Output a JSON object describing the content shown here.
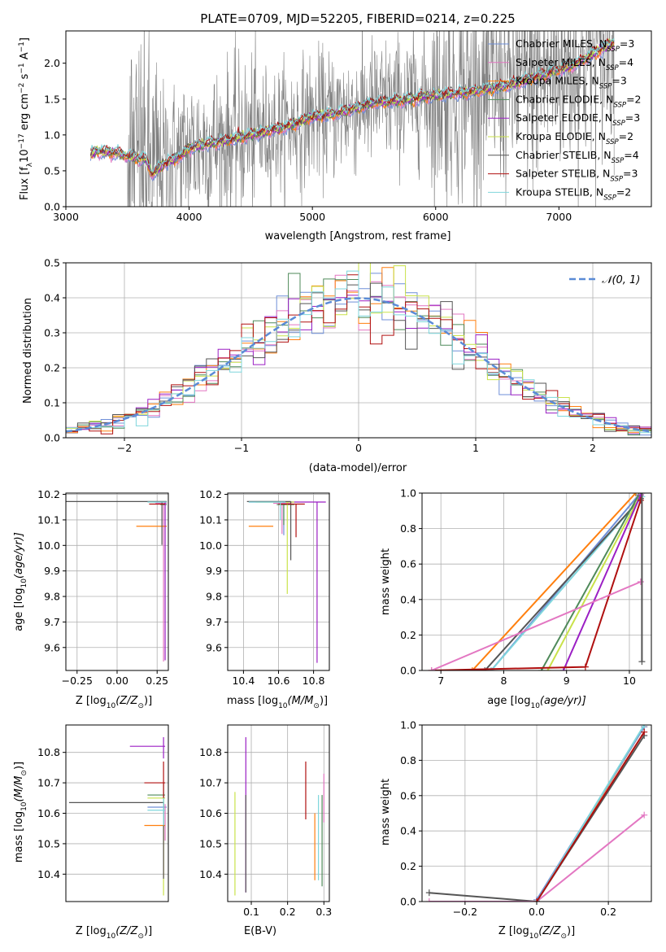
{
  "figure": {
    "title": "PLATE=0709, MJD=52205, FIBERID=0214, z=0.225",
    "colors": {
      "chabrier_miles": "#6f8fd8",
      "salpeter_miles": "#e377c2",
      "kroupa_miles": "#ff7f0e",
      "chabrier_elodie": "#4f8a5a",
      "salpeter_elodie": "#9b1fc4",
      "kroupa_elodie": "#c9e24a",
      "chabrier_stelib": "#555555",
      "salpeter_stelib": "#b01010",
      "kroupa_stelib": "#7fd6dc",
      "data": "#808080"
    }
  },
  "chart_data": [
    {
      "id": "spectrum",
      "type": "line",
      "xlabel": "wavelength [Angstrom, rest frame]",
      "ylabel": "Flux [f",
      "ylabel_sub": "λ",
      "ylabel_rest": "10",
      "ylabel_exp": "−17",
      "ylabel_units": " erg cm",
      "ylabel_units_exp": "−2",
      "ylabel_s": " s",
      "ylabel_s_exp": "−1",
      "ylabel_A": " A",
      "ylabel_A_exp": "−1",
      "ylabel_close": "]",
      "xlim": [
        3000,
        7750
      ],
      "ylim": [
        0,
        2.45
      ],
      "xticks": [
        "3000",
        "4000",
        "5000",
        "6000",
        "7000"
      ],
      "yticks": [
        "0.0",
        "0.5",
        "1.0",
        "1.5",
        "2.0"
      ],
      "data_range": [
        3200,
        7450
      ],
      "model_anchors": [
        [
          3200,
          0.72
        ],
        [
          3250,
          0.78
        ],
        [
          3400,
          0.75
        ],
        [
          3500,
          0.7
        ],
        [
          3650,
          0.66
        ],
        [
          3700,
          0.45
        ],
        [
          3800,
          0.6
        ],
        [
          3950,
          0.72
        ],
        [
          4000,
          0.82
        ],
        [
          4300,
          0.92
        ],
        [
          4500,
          1.0
        ],
        [
          4800,
          1.12
        ],
        [
          5000,
          1.25
        ],
        [
          5200,
          1.3
        ],
        [
          5500,
          1.45
        ],
        [
          5800,
          1.5
        ],
        [
          6000,
          1.55
        ],
        [
          6300,
          1.6
        ],
        [
          6600,
          1.7
        ],
        [
          6900,
          1.85
        ],
        [
          7150,
          2.0
        ],
        [
          7300,
          2.15
        ],
        [
          7450,
          2.3
        ]
      ],
      "legend": [
        {
          "label": "Chabrier MILES, N",
          "sub": "SSP",
          "eq": "=3",
          "color_key": "chabrier_miles"
        },
        {
          "label": "Salpeter MILES, N",
          "sub": "SSP",
          "eq": "=4",
          "color_key": "salpeter_miles"
        },
        {
          "label": "Kroupa MILES, N",
          "sub": "SSP",
          "eq": "=3",
          "color_key": "kroupa_miles"
        },
        {
          "label": "Chabrier ELODIE, N",
          "sub": "SSP",
          "eq": "=2",
          "color_key": "chabrier_elodie"
        },
        {
          "label": "Salpeter ELODIE, N",
          "sub": "SSP",
          "eq": "=3",
          "color_key": "salpeter_elodie"
        },
        {
          "label": "Kroupa ELODIE, N",
          "sub": "SSP",
          "eq": "=2",
          "color_key": "kroupa_elodie"
        },
        {
          "label": "Chabrier STELIB, N",
          "sub": "SSP",
          "eq": "=4",
          "color_key": "chabrier_stelib"
        },
        {
          "label": "Salpeter STELIB, N",
          "sub": "SSP",
          "eq": "=3",
          "color_key": "salpeter_stelib"
        },
        {
          "label": "Kroupa STELIB, N",
          "sub": "SSP",
          "eq": "=2",
          "color_key": "kroupa_stelib"
        }
      ],
      "legend_position": "upper right"
    },
    {
      "id": "residuals",
      "type": "line",
      "xlabel": "(data-model)/error",
      "ylabel": "Normed distribution",
      "xlim": [
        -2.5,
        2.5
      ],
      "ylim": [
        0,
        0.5
      ],
      "xticks": [
        -2,
        -1,
        0,
        1,
        2
      ],
      "xtick_labels": [
        "−2",
        "−1",
        "0",
        "1",
        "2"
      ],
      "yticks": [
        "0.0",
        "0.1",
        "0.2",
        "0.3",
        "0.4",
        "0.5"
      ],
      "bin_width": 0.1,
      "bin_start": -2.5,
      "legend": "𝒩(0, 1)",
      "legend_position": "upper right",
      "gauss_color": "#5b8bd6",
      "grid": true
    },
    {
      "id": "age_vs_Z",
      "type": "scatter",
      "xlabel": "Z [log",
      "xlabel_sub": "10",
      "xlabel_rest": "(Z/Z",
      "xlabel_sun": "⊙",
      "xlabel_close": ")]",
      "ylabel": "age  [log",
      "ylabel_sub": "10",
      "ylabel_rest": "(age/yr)]",
      "xlim": [
        -0.32,
        0.32
      ],
      "ylim": [
        9.51,
        10.205
      ],
      "xticks": [
        "−0.25",
        "0.00",
        "0.25"
      ],
      "yticks": [
        "9.6",
        "9.7",
        "9.8",
        "9.9",
        "10.0",
        "10.1",
        "10.2"
      ],
      "points": [
        {
          "x": 0.28,
          "y": 10.17,
          "xerr": [
            0.05,
            0.03
          ],
          "yerr": [
            0.0,
            0.0
          ],
          "color_key": "chabrier_miles"
        },
        {
          "x": 0.29,
          "y": 10.165,
          "xerr": [
            0.05,
            0.02
          ],
          "yerr": [
            0.62,
            0.0
          ],
          "color_key": "salpeter_miles"
        },
        {
          "x": 0.28,
          "y": 10.075,
          "xerr": [
            0.16,
            0.03
          ],
          "yerr": [
            0.0,
            0.0
          ],
          "color_key": "kroupa_miles"
        },
        {
          "x": 0.29,
          "y": 10.16,
          "xerr": [
            0.02,
            0.02
          ],
          "yerr": [
            0.0,
            0.0
          ],
          "color_key": "chabrier_elodie"
        },
        {
          "x": 0.3,
          "y": 10.17,
          "xerr": [
            0.03,
            0.01
          ],
          "yerr": [
            0.62,
            0.0
          ],
          "color_key": "salpeter_elodie"
        },
        {
          "x": 0.29,
          "y": 10.17,
          "xerr": [
            0.02,
            0.02
          ],
          "yerr": [
            0.0,
            0.0
          ],
          "color_key": "kroupa_elodie"
        },
        {
          "x": 0.28,
          "y": 10.172,
          "xerr": [
            0.6,
            0.03
          ],
          "yerr": [
            0.17,
            0.0
          ],
          "color_key": "chabrier_stelib"
        },
        {
          "x": 0.28,
          "y": 10.162,
          "xerr": [
            0.08,
            0.02
          ],
          "yerr": [
            0.0,
            0.0
          ],
          "color_key": "salpeter_stelib"
        },
        {
          "x": 0.29,
          "y": 10.17,
          "xerr": [
            0.1,
            0.02
          ],
          "yerr": [
            0.0,
            0.0
          ],
          "color_key": "kroupa_stelib"
        }
      ]
    },
    {
      "id": "age_vs_mass",
      "type": "scatter",
      "xlabel": "mass [log",
      "xlabel_sub": "10",
      "xlabel_rest": "(M/M",
      "xlabel_sun": "⊙",
      "xlabel_close": ")]",
      "xlim": [
        10.31,
        10.89
      ],
      "ylim": [
        9.51,
        10.205
      ],
      "xticks": [
        "10.4",
        "10.6",
        "10.8"
      ],
      "tick_values": [
        10.4,
        10.6,
        10.8
      ],
      "yticks": [
        "9.6",
        "9.7",
        "9.8",
        "9.9",
        "10.0",
        "10.1",
        "10.2"
      ],
      "points": [
        {
          "x": 10.63,
          "y": 10.17,
          "xerr": [
            0.2,
            0.05
          ],
          "yerr": [
            0.13,
            0.0
          ],
          "color_key": "chabrier_miles"
        },
        {
          "x": 10.62,
          "y": 10.165,
          "xerr": [
            0.05,
            0.05
          ],
          "yerr": [
            0.12,
            0.0
          ],
          "color_key": "salpeter_miles"
        },
        {
          "x": 10.57,
          "y": 10.075,
          "xerr": [
            0.14,
            0.0
          ],
          "yerr": [
            0.0,
            0.0
          ],
          "color_key": "kroupa_miles"
        },
        {
          "x": 10.63,
          "y": 10.16,
          "xerr": [
            0.04,
            0.06
          ],
          "yerr": [
            0.08,
            0.0
          ],
          "color_key": "chabrier_elodie"
        },
        {
          "x": 10.82,
          "y": 10.17,
          "xerr": [
            0.2,
            0.05
          ],
          "yerr": [
            0.63,
            0.0
          ],
          "color_key": "salpeter_elodie"
        },
        {
          "x": 10.65,
          "y": 10.17,
          "xerr": [
            0.18,
            0.04
          ],
          "yerr": [
            0.36,
            0.0
          ],
          "color_key": "kroupa_elodie"
        },
        {
          "x": 10.67,
          "y": 10.172,
          "xerr": [
            0.25,
            0.0
          ],
          "yerr": [
            0.23,
            0.0
          ],
          "color_key": "chabrier_stelib"
        },
        {
          "x": 10.7,
          "y": 10.162,
          "xerr": [
            0.1,
            0.05
          ],
          "yerr": [
            0.13,
            0.0
          ],
          "color_key": "salpeter_stelib"
        },
        {
          "x": 10.61,
          "y": 10.17,
          "xerr": [
            0.18,
            0.03
          ],
          "yerr": [
            0.07,
            0.0
          ],
          "color_key": "kroupa_stelib"
        }
      ]
    },
    {
      "id": "weight_vs_age",
      "type": "line",
      "xlabel": "age  [log",
      "xlabel_sub": "10",
      "xlabel_rest": "(age/yr)]",
      "ylabel": "mass weight",
      "xlim": [
        6.7,
        10.35
      ],
      "ylim": [
        0,
        1.0
      ],
      "xticks": [
        "7",
        "8",
        "9",
        "10"
      ],
      "tick_values": [
        7,
        8,
        9,
        10
      ],
      "yticks": [
        "0.0",
        "0.2",
        "0.4",
        "0.6",
        "0.8",
        "1.0"
      ],
      "series": [
        {
          "color_key": "kroupa_miles",
          "x": [
            7.5,
            10.1
          ],
          "y": [
            0.0,
            1.0
          ]
        },
        {
          "color_key": "chabrier_miles",
          "x": [
            7.8,
            10.15
          ],
          "y": [
            0.0,
            0.99
          ]
        },
        {
          "color_key": "kroupa_stelib",
          "x": [
            7.8,
            10.2
          ],
          "y": [
            0.0,
            0.98
          ]
        },
        {
          "color_key": "chabrier_stelib",
          "x": [
            7.7,
            10.18
          ],
          "y": [
            0.0,
            0.97
          ]
        },
        {
          "color_key": "chabrier_elodie",
          "x": [
            8.6,
            10.15
          ],
          "y": [
            0.0,
            0.99
          ]
        },
        {
          "color_key": "kroupa_elodie",
          "x": [
            8.7,
            10.18
          ],
          "y": [
            0.0,
            0.99
          ]
        },
        {
          "color_key": "salpeter_elodie",
          "x": [
            8.95,
            10.18
          ],
          "y": [
            0.0,
            0.99
          ]
        },
        {
          "color_key": "salpeter_stelib",
          "x": [
            6.85,
            9.3,
            10.18
          ],
          "y": [
            0.0,
            0.02,
            0.96
          ]
        },
        {
          "color_key": "salpeter_miles",
          "x": [
            6.85,
            10.18
          ],
          "y": [
            0.0,
            0.5
          ]
        },
        {
          "color_key": "chabrier_stelib",
          "x": [
            10.2,
            10.2
          ],
          "y": [
            0.05,
            1.0
          ]
        }
      ]
    },
    {
      "id": "mass_vs_Z",
      "type": "scatter",
      "xlabel": "Z [log",
      "xlabel_sub": "10",
      "xlabel_rest": "(Z/Z",
      "xlabel_sun": "⊙",
      "xlabel_close": ")]",
      "ylabel": "mass [log",
      "ylabel_sub": "10",
      "ylabel_rest": "(M/M",
      "ylabel_sun": "⊙",
      "ylabel_close": ")]",
      "xlim": [
        -0.32,
        0.32
      ],
      "ylim": [
        10.31,
        10.89
      ],
      "xticks": [
        "−0.25",
        "0.00",
        "0.25"
      ],
      "yticks": [
        "10.4",
        "10.5",
        "10.6",
        "10.7",
        "10.8"
      ],
      "tick_values": [
        10.4,
        10.5,
        10.6,
        10.7,
        10.8
      ],
      "points": [
        {
          "x": 0.29,
          "y": 10.62,
          "xerr": [
            0.1,
            0.02
          ],
          "yerr": [
            0.07,
            0.05
          ],
          "color_key": "chabrier_miles"
        },
        {
          "x": 0.3,
          "y": 10.58,
          "xerr": [
            0.0,
            0.0
          ],
          "yerr": [
            0.07,
            0.05
          ],
          "color_key": "salpeter_miles"
        },
        {
          "x": 0.29,
          "y": 10.56,
          "xerr": [
            0.12,
            0.01
          ],
          "yerr": [
            0.17,
            0.0
          ],
          "color_key": "kroupa_miles"
        },
        {
          "x": 0.29,
          "y": 10.66,
          "xerr": [
            0.1,
            0.01
          ],
          "yerr": [
            0.04,
            0.04
          ],
          "color_key": "chabrier_elodie"
        },
        {
          "x": 0.29,
          "y": 10.82,
          "xerr": [
            0.21,
            0.01
          ],
          "yerr": [
            0.04,
            0.03
          ],
          "color_key": "salpeter_elodie"
        },
        {
          "x": 0.29,
          "y": 10.65,
          "xerr": [
            0.1,
            0.01
          ],
          "yerr": [
            0.32,
            0.0
          ],
          "color_key": "kroupa_elodie"
        },
        {
          "x": 0.29,
          "y": 10.635,
          "xerr": [
            0.59,
            0.0
          ],
          "yerr": [
            0.25,
            0.0
          ],
          "color_key": "chabrier_stelib"
        },
        {
          "x": 0.29,
          "y": 10.7,
          "xerr": [
            0.12,
            0.01
          ],
          "yerr": [
            0.05,
            0.07
          ],
          "color_key": "salpeter_stelib"
        },
        {
          "x": 0.29,
          "y": 10.61,
          "xerr": [
            0.1,
            0.01
          ],
          "yerr": [
            0.05,
            0.04
          ],
          "color_key": "kroupa_stelib"
        }
      ]
    },
    {
      "id": "mass_vs_ebv",
      "type": "scatter",
      "xlabel": "E(B-V)",
      "xlim": [
        0.035,
        0.315
      ],
      "ylim": [
        10.31,
        10.89
      ],
      "xticks": [
        "0.1",
        "0.2",
        "0.3"
      ],
      "tick_values": [
        0.1,
        0.2,
        0.3
      ],
      "yticks": [
        "10.4",
        "10.5",
        "10.6",
        "10.7",
        "10.8"
      ],
      "points": [
        {
          "x": 0.3,
          "y": 10.65,
          "yerr": [
            0.08,
            0.08
          ],
          "color_key": "salpeter_miles"
        },
        {
          "x": 0.275,
          "y": 10.5,
          "yerr": [
            0.12,
            0.1
          ],
          "color_key": "kroupa_miles"
        },
        {
          "x": 0.295,
          "y": 10.5,
          "yerr": [
            0.14,
            0.16
          ],
          "color_key": "chabrier_elodie"
        },
        {
          "x": 0.085,
          "y": 10.6,
          "yerr": [
            0.26,
            0.25
          ],
          "color_key": "salpeter_elodie"
        },
        {
          "x": 0.055,
          "y": 10.5,
          "yerr": [
            0.17,
            0.17
          ],
          "color_key": "kroupa_elodie"
        },
        {
          "x": 0.085,
          "y": 10.5,
          "yerr": [
            0.16,
            0.16
          ],
          "color_key": "chabrier_stelib"
        },
        {
          "x": 0.25,
          "y": 10.68,
          "yerr": [
            0.1,
            0.09
          ],
          "color_key": "salpeter_stelib"
        },
        {
          "x": 0.285,
          "y": 10.52,
          "yerr": [
            0.14,
            0.14
          ],
          "color_key": "kroupa_stelib"
        }
      ]
    },
    {
      "id": "weight_vs_Z",
      "type": "line",
      "xlabel": "Z [log",
      "xlabel_sub": "10",
      "xlabel_rest": "(Z/Z",
      "xlabel_sun": "⊙",
      "xlabel_close": ")]",
      "ylabel": "mass weight",
      "xlim": [
        -0.32,
        0.32
      ],
      "ylim": [
        0,
        1.0
      ],
      "xticks": [
        "−0.2",
        "0.0",
        "0.2"
      ],
      "tick_values": [
        -0.2,
        0.0,
        0.2
      ],
      "yticks": [
        "0.0",
        "0.2",
        "0.4",
        "0.6",
        "0.8",
        "1.0"
      ],
      "series": [
        {
          "color_key": "chabrier_stelib",
          "x": [
            -0.3,
            0.0,
            0.3
          ],
          "y": [
            0.05,
            0.0,
            0.94
          ]
        },
        {
          "color_key": "salpeter_miles",
          "x": [
            -0.3,
            0.0,
            0.3
          ],
          "y": [
            0.0,
            0.0,
            0.49
          ]
        },
        {
          "color_key": "kroupa_miles",
          "x": [
            0.0,
            0.3
          ],
          "y": [
            0.0,
            0.99
          ]
        },
        {
          "color_key": "chabrier_miles",
          "x": [
            0.0,
            0.3
          ],
          "y": [
            0.01,
            0.99
          ]
        },
        {
          "color_key": "kroupa_stelib",
          "x": [
            0.0,
            0.3
          ],
          "y": [
            0.0,
            1.0
          ]
        },
        {
          "color_key": "salpeter_stelib",
          "x": [
            0.0,
            0.3
          ],
          "y": [
            0.0,
            0.96
          ]
        }
      ]
    }
  ]
}
